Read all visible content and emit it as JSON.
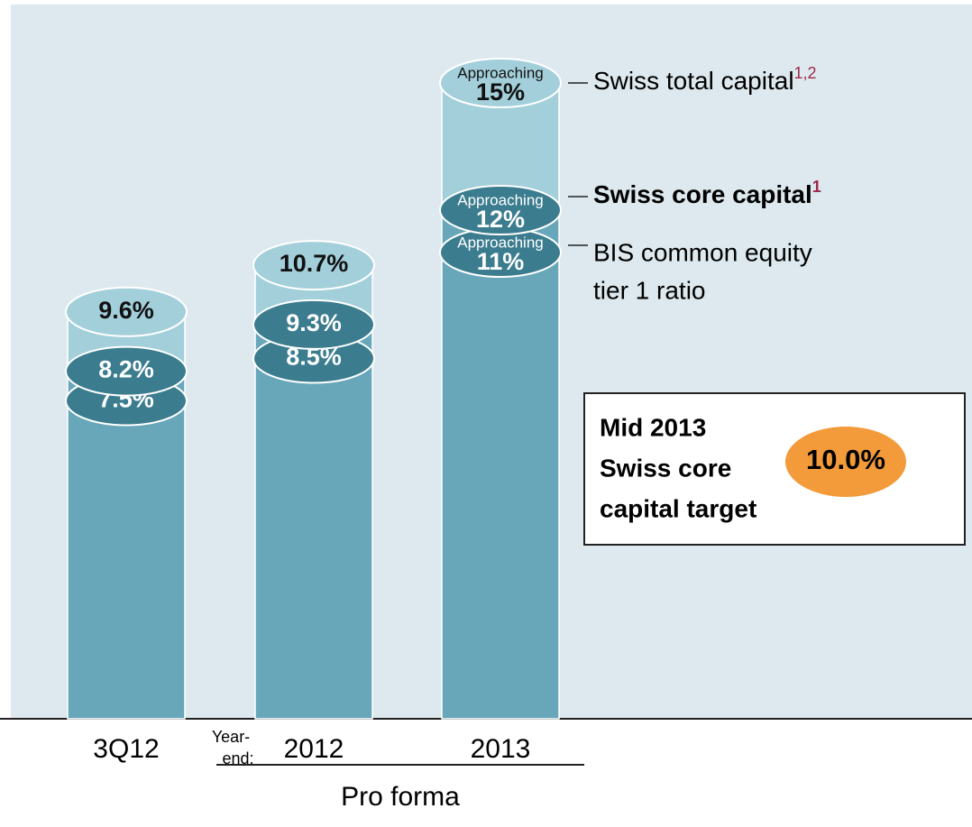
{
  "chart_data": {
    "type": "layered-bar",
    "categories": [
      "3Q12",
      "2012",
      "2013"
    ],
    "category_prefix": {
      "index": 1,
      "lines": [
        "Year-",
        "end:"
      ]
    },
    "group_label": "Pro forma",
    "series": [
      {
        "name": "Swiss total capital",
        "note": "1,2",
        "color": "#a3cfdb",
        "values": [
          9.6,
          10.7,
          15
        ],
        "value_labels": [
          "9.6%",
          "10.7%",
          "15%"
        ],
        "value_notes": [
          null,
          null,
          "Approaching"
        ]
      },
      {
        "name": "Swiss core capital",
        "note": "1",
        "color": "#3b7c8f",
        "values": [
          8.2,
          9.3,
          12
        ],
        "value_labels": [
          "8.2%",
          "9.3%",
          "12%"
        ],
        "value_notes": [
          null,
          null,
          "Approaching"
        ]
      },
      {
        "name_lines": [
          "BIS common equity",
          "tier 1 ratio"
        ],
        "color": "#3b7c8f",
        "values": [
          7.5,
          8.5,
          11
        ],
        "value_labels": [
          "7.5%",
          "8.5%",
          "11%"
        ],
        "value_notes": [
          null,
          null,
          "Approaching"
        ]
      }
    ],
    "bar_color": "#68a7ba",
    "target": {
      "lines": [
        "Mid 2013",
        "Swiss core",
        "capital target"
      ],
      "value": 10.0,
      "value_label": "10.0%",
      "color": "#f39a3a"
    }
  }
}
